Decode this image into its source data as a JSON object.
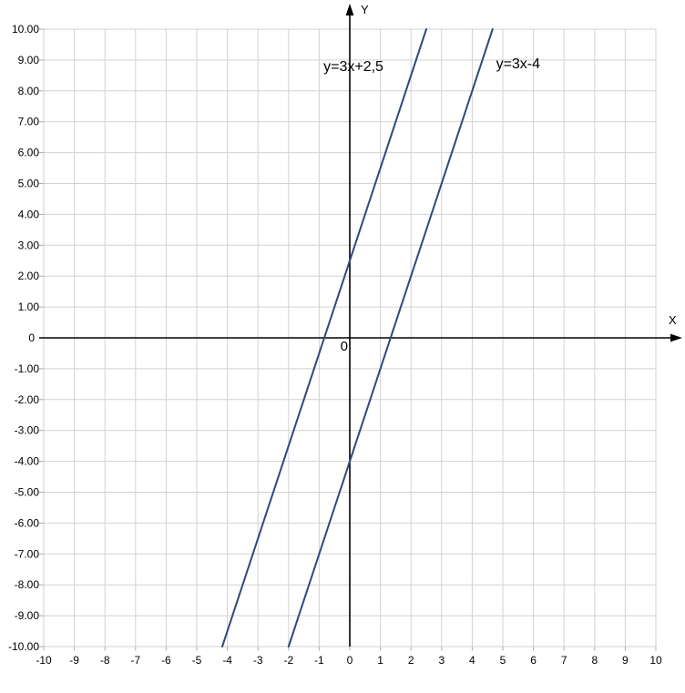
{
  "chart_data": {
    "type": "line",
    "title": "",
    "xlabel": "X",
    "ylabel": "Y",
    "origin_label": "0",
    "xlim": [
      -10,
      10
    ],
    "ylim": [
      -10,
      10
    ],
    "grid": true,
    "legend_position": "none",
    "x_tick_values": [
      -10,
      -9,
      -8,
      -7,
      -6,
      -5,
      -4,
      -3,
      -2,
      -1,
      0,
      1,
      2,
      3,
      4,
      5,
      6,
      7,
      8,
      9,
      10
    ],
    "x_tick_labels": [
      "-10",
      "-9",
      "-8",
      "-7",
      "-6",
      "-5",
      "-4",
      "-3",
      "-2",
      "-1",
      "0",
      "1",
      "2",
      "3",
      "4",
      "5",
      "6",
      "7",
      "8",
      "9",
      "10"
    ],
    "y_tick_values": [
      10,
      9,
      8,
      7,
      6,
      5,
      4,
      3,
      2,
      1,
      0,
      -1,
      -2,
      -3,
      -4,
      -5,
      -6,
      -7,
      -8,
      -9,
      -10
    ],
    "y_tick_labels": [
      "10.00",
      "9.00",
      "8.00",
      "7.00",
      "6.00",
      "5.00",
      "4.00",
      "3.00",
      "2.00",
      "1.00",
      "0",
      "-1.00",
      "-2.00",
      "-3.00",
      "-4.00",
      "-5.00",
      "-6.00",
      "-7.00",
      "-8.00",
      "-9.00",
      "-10.00"
    ],
    "series": [
      {
        "name": "y=3x+2,5",
        "slope": 3,
        "intercept": 2.5,
        "points": [
          [
            -4.1667,
            -10
          ],
          [
            2.5,
            10
          ]
        ],
        "color": "#2d4a7d",
        "label": {
          "text": "y=3x+2,5",
          "x": 0.12,
          "y": 8.8
        }
      },
      {
        "name": "y=3x-4",
        "slope": 3,
        "intercept": -4,
        "points": [
          [
            -2,
            -10
          ],
          [
            4.6667,
            10
          ]
        ],
        "color": "#2d4a7d",
        "label": {
          "text": "y=3x-4",
          "x": 5.5,
          "y": 8.9
        }
      }
    ],
    "colors": {
      "background": "#ffffff",
      "grid": "#d2d2d2",
      "tick": "#aaaaaa",
      "axis": "#000000",
      "text": "#000000",
      "line": "#2d4a7d"
    }
  }
}
